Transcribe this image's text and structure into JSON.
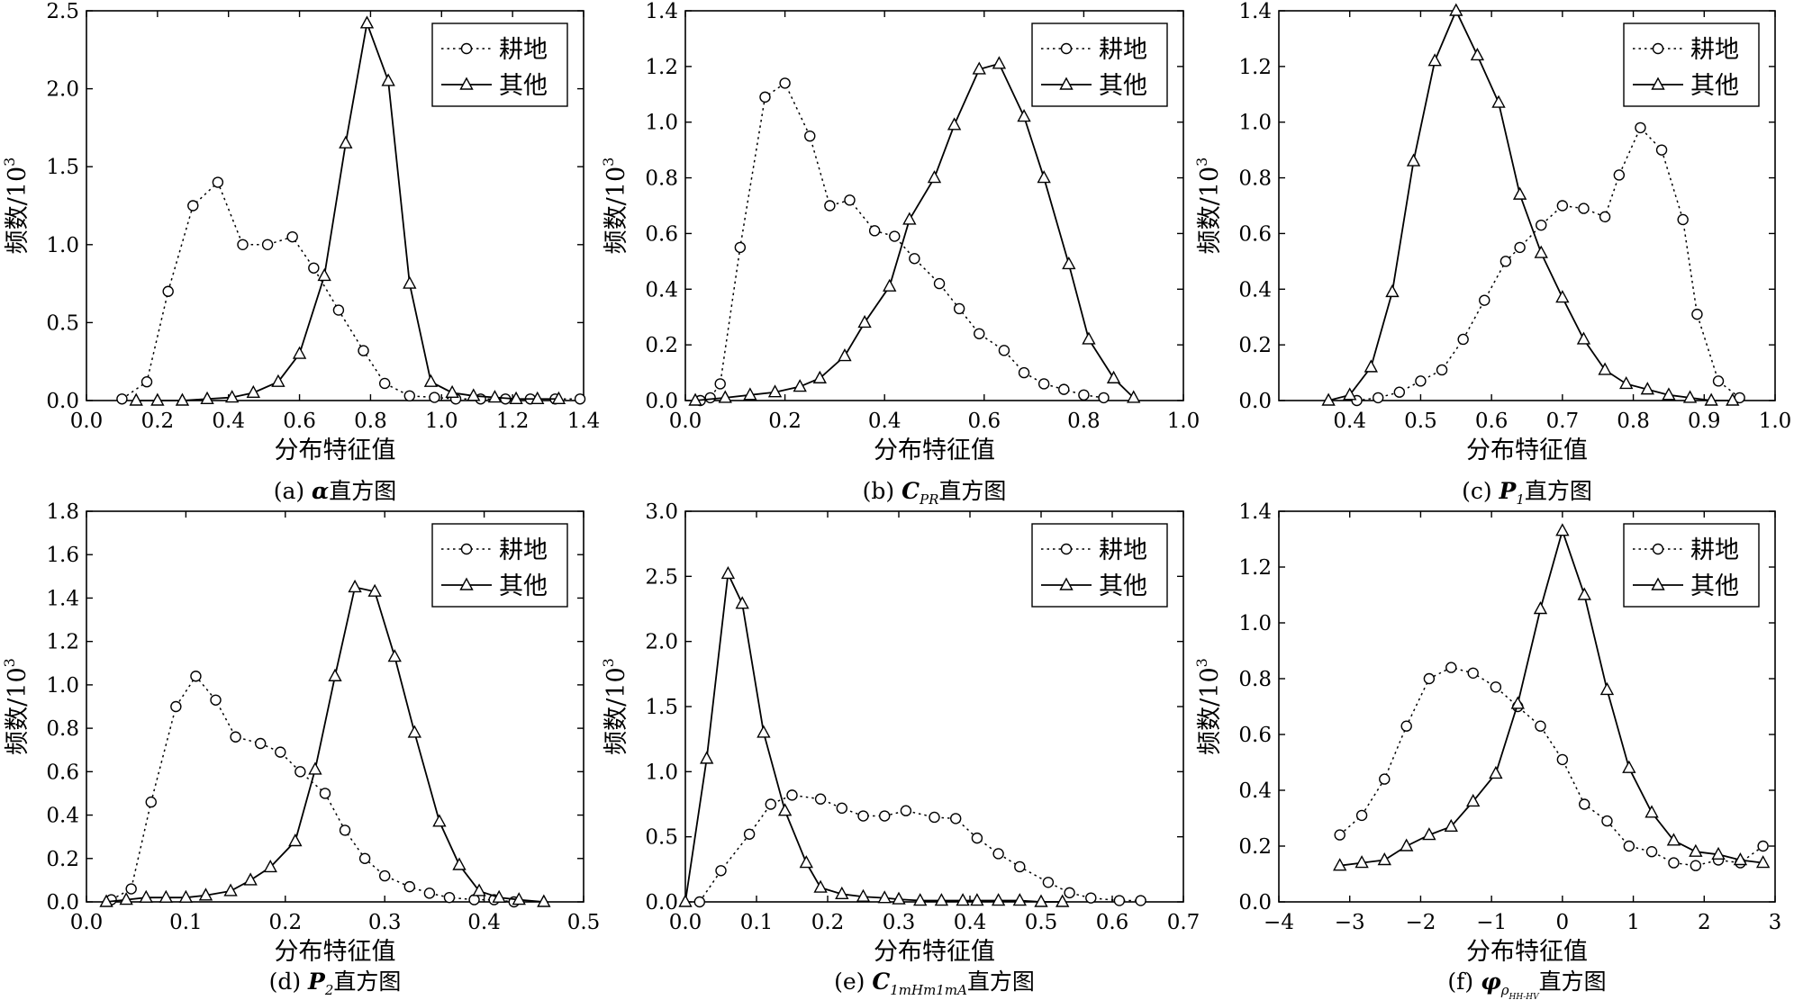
{
  "chart_data": [
    {
      "type": "line",
      "ylabel": "频数/10",
      "ylabel_exp": "3",
      "xlabel": "分布特征值",
      "caption_prefix": "(a) ",
      "caption_symbol": "α",
      "caption_sub": "",
      "caption_suffix": "直方图",
      "xlim": [
        0,
        1.4
      ],
      "ylim": [
        0,
        2.5
      ],
      "xticks": [
        0,
        0.2,
        0.4,
        0.6,
        0.8,
        1.0,
        1.2,
        1.4
      ],
      "xtick_labels": [
        "0.0",
        "0.2",
        "0.4",
        "0.6",
        "0.8",
        "1.0",
        "1.2",
        "1.4"
      ],
      "yticks": [
        0,
        0.5,
        1.0,
        1.5,
        2.0,
        2.5
      ],
      "ytick_labels": [
        "0.0",
        "0.5",
        "1.0",
        "1.5",
        "2.0",
        "2.5"
      ],
      "legend_position": "top-right",
      "series": [
        {
          "name": "耕地",
          "style": "dotted-circle",
          "x": [
            0.1,
            0.17,
            0.23,
            0.3,
            0.37,
            0.44,
            0.51,
            0.58,
            0.64,
            0.71,
            0.78,
            0.84,
            0.91,
            0.98,
            1.04,
            1.11,
            1.18,
            1.25,
            1.32,
            1.39
          ],
          "y": [
            0.01,
            0.12,
            0.7,
            1.25,
            1.4,
            1.0,
            1.0,
            1.05,
            0.85,
            0.58,
            0.32,
            0.11,
            0.03,
            0.02,
            0.01,
            0.01,
            0.01,
            0.01,
            0.01,
            0.01
          ]
        },
        {
          "name": "其他",
          "style": "solid-triangle",
          "x": [
            0.14,
            0.2,
            0.27,
            0.34,
            0.41,
            0.47,
            0.54,
            0.6,
            0.67,
            0.73,
            0.79,
            0.85,
            0.91,
            0.97,
            1.03,
            1.09,
            1.15,
            1.21,
            1.27,
            1.33
          ],
          "y": [
            0.0,
            0.0,
            0.0,
            0.01,
            0.02,
            0.05,
            0.12,
            0.3,
            0.8,
            1.65,
            2.42,
            2.05,
            0.75,
            0.12,
            0.05,
            0.03,
            0.02,
            0.01,
            0.01,
            0.01
          ]
        }
      ]
    },
    {
      "type": "line",
      "ylabel": "频数/10",
      "ylabel_exp": "3",
      "xlabel": "分布特征值",
      "caption_prefix": "(b) ",
      "caption_symbol": "C",
      "caption_sub": "PR",
      "caption_suffix": "直方图",
      "xlim": [
        0,
        1.0
      ],
      "ylim": [
        0,
        1.4
      ],
      "xticks": [
        0,
        0.2,
        0.4,
        0.6,
        0.8,
        1.0
      ],
      "xtick_labels": [
        "0.0",
        "0.2",
        "0.4",
        "0.6",
        "0.8",
        "1.0"
      ],
      "yticks": [
        0,
        0.2,
        0.4,
        0.6,
        0.8,
        1.0,
        1.2,
        1.4
      ],
      "ytick_labels": [
        "0.0",
        "0.2",
        "0.4",
        "0.6",
        "0.8",
        "1.0",
        "1.2",
        "1.4"
      ],
      "legend_position": "top-right",
      "series": [
        {
          "name": "耕地",
          "style": "dotted-circle",
          "x": [
            0.03,
            0.05,
            0.07,
            0.11,
            0.16,
            0.2,
            0.25,
            0.29,
            0.33,
            0.38,
            0.42,
            0.46,
            0.51,
            0.55,
            0.59,
            0.64,
            0.68,
            0.72,
            0.76,
            0.8,
            0.84
          ],
          "y": [
            0.0,
            0.01,
            0.06,
            0.55,
            1.09,
            1.14,
            0.95,
            0.7,
            0.72,
            0.61,
            0.59,
            0.51,
            0.42,
            0.33,
            0.24,
            0.18,
            0.1,
            0.06,
            0.04,
            0.02,
            0.01
          ]
        },
        {
          "name": "其他",
          "style": "solid-triangle",
          "x": [
            0.02,
            0.08,
            0.13,
            0.18,
            0.23,
            0.27,
            0.32,
            0.36,
            0.41,
            0.45,
            0.5,
            0.54,
            0.59,
            0.63,
            0.68,
            0.72,
            0.77,
            0.81,
            0.86,
            0.9
          ],
          "y": [
            0.0,
            0.01,
            0.02,
            0.03,
            0.05,
            0.08,
            0.16,
            0.28,
            0.41,
            0.65,
            0.8,
            0.99,
            1.19,
            1.21,
            1.02,
            0.8,
            0.49,
            0.22,
            0.08,
            0.01
          ]
        }
      ]
    },
    {
      "type": "line",
      "ylabel": "频数/10",
      "ylabel_exp": "3",
      "xlabel": "分布特征值",
      "caption_prefix": "(c) ",
      "caption_symbol": "P",
      "caption_sub": "1",
      "caption_suffix": "直方图",
      "xlim": [
        0.3,
        1.0
      ],
      "ylim": [
        0,
        1.4
      ],
      "xticks": [
        0.4,
        0.5,
        0.6,
        0.7,
        0.8,
        0.9,
        1.0
      ],
      "xtick_labels": [
        "0.4",
        "0.5",
        "0.6",
        "0.7",
        "0.8",
        "0.9",
        "1.0"
      ],
      "yticks": [
        0,
        0.2,
        0.4,
        0.6,
        0.8,
        1.0,
        1.2,
        1.4
      ],
      "ytick_labels": [
        "0.0",
        "0.2",
        "0.4",
        "0.6",
        "0.8",
        "1.0",
        "1.2",
        "1.4"
      ],
      "legend_position": "top-right",
      "series": [
        {
          "name": "耕地",
          "style": "dotted-circle",
          "x": [
            0.41,
            0.44,
            0.47,
            0.5,
            0.53,
            0.56,
            0.59,
            0.62,
            0.64,
            0.67,
            0.7,
            0.73,
            0.76,
            0.78,
            0.81,
            0.84,
            0.87,
            0.89,
            0.92,
            0.95
          ],
          "y": [
            0.0,
            0.01,
            0.03,
            0.07,
            0.11,
            0.22,
            0.36,
            0.5,
            0.55,
            0.63,
            0.7,
            0.69,
            0.66,
            0.81,
            0.98,
            0.9,
            0.65,
            0.31,
            0.07,
            0.01
          ]
        },
        {
          "name": "其他",
          "style": "solid-triangle",
          "x": [
            0.37,
            0.4,
            0.43,
            0.46,
            0.49,
            0.52,
            0.55,
            0.58,
            0.61,
            0.64,
            0.67,
            0.7,
            0.73,
            0.76,
            0.79,
            0.82,
            0.85,
            0.88,
            0.91,
            0.94
          ],
          "y": [
            0.0,
            0.02,
            0.12,
            0.39,
            0.86,
            1.22,
            1.4,
            1.24,
            1.07,
            0.74,
            0.53,
            0.37,
            0.22,
            0.11,
            0.06,
            0.04,
            0.02,
            0.01,
            0.0,
            0.0
          ]
        }
      ]
    },
    {
      "type": "line",
      "ylabel": "频数/10",
      "ylabel_exp": "3",
      "xlabel": "分布特征值",
      "caption_prefix": "(d) ",
      "caption_symbol": "P",
      "caption_sub": "2",
      "caption_suffix": "直方图",
      "xlim": [
        0,
        0.5
      ],
      "ylim": [
        0,
        1.8
      ],
      "xticks": [
        0,
        0.1,
        0.2,
        0.3,
        0.4,
        0.5
      ],
      "xtick_labels": [
        "0.0",
        "0.1",
        "0.2",
        "0.3",
        "0.4",
        "0.5"
      ],
      "yticks": [
        0,
        0.2,
        0.4,
        0.6,
        0.8,
        1.0,
        1.2,
        1.4,
        1.6,
        1.8
      ],
      "ytick_labels": [
        "0.0",
        "0.2",
        "0.4",
        "0.6",
        "0.8",
        "1.0",
        "1.2",
        "1.4",
        "1.6",
        "1.8"
      ],
      "legend_position": "top-right",
      "series": [
        {
          "name": "耕地",
          "style": "dotted-circle",
          "x": [
            0.025,
            0.045,
            0.065,
            0.09,
            0.11,
            0.13,
            0.15,
            0.175,
            0.195,
            0.215,
            0.24,
            0.26,
            0.28,
            0.3,
            0.325,
            0.345,
            0.365,
            0.39,
            0.41,
            0.43
          ],
          "y": [
            0.01,
            0.06,
            0.46,
            0.9,
            1.04,
            0.93,
            0.76,
            0.73,
            0.69,
            0.6,
            0.5,
            0.33,
            0.2,
            0.12,
            0.07,
            0.04,
            0.02,
            0.01,
            0.01,
            0.0
          ]
        },
        {
          "name": "其他",
          "style": "solid-triangle",
          "x": [
            0.02,
            0.04,
            0.06,
            0.08,
            0.1,
            0.12,
            0.145,
            0.165,
            0.185,
            0.21,
            0.23,
            0.25,
            0.27,
            0.29,
            0.31,
            0.33,
            0.355,
            0.375,
            0.395,
            0.415,
            0.435,
            0.46
          ],
          "y": [
            0.0,
            0.01,
            0.02,
            0.02,
            0.02,
            0.03,
            0.05,
            0.1,
            0.16,
            0.28,
            0.61,
            1.04,
            1.45,
            1.43,
            1.13,
            0.78,
            0.37,
            0.17,
            0.05,
            0.02,
            0.01,
            0.0
          ]
        }
      ]
    },
    {
      "type": "line",
      "ylabel": "频数/10",
      "ylabel_exp": "3",
      "xlabel": "分布特征值",
      "caption_prefix": "(e) ",
      "caption_symbol": "C",
      "caption_sub": "1mHm1mA",
      "caption_suffix": "直方图",
      "xlim": [
        0,
        0.7
      ],
      "ylim": [
        0,
        3.0
      ],
      "xticks": [
        0,
        0.1,
        0.2,
        0.3,
        0.4,
        0.5,
        0.6,
        0.7
      ],
      "xtick_labels": [
        "0.0",
        "0.1",
        "0.2",
        "0.3",
        "0.4",
        "0.5",
        "0.6",
        "0.7"
      ],
      "yticks": [
        0,
        0.5,
        1.0,
        1.5,
        2.0,
        2.5,
        3.0
      ],
      "ytick_labels": [
        "0.0",
        "0.5",
        "1.0",
        "1.5",
        "2.0",
        "2.5",
        "3.0"
      ],
      "legend_position": "top-right",
      "series": [
        {
          "name": "耕地",
          "style": "dotted-circle",
          "x": [
            0.02,
            0.05,
            0.09,
            0.12,
            0.15,
            0.19,
            0.22,
            0.25,
            0.28,
            0.31,
            0.35,
            0.38,
            0.41,
            0.44,
            0.47,
            0.51,
            0.54,
            0.57,
            0.61,
            0.64
          ],
          "y": [
            0.0,
            0.24,
            0.52,
            0.75,
            0.82,
            0.79,
            0.72,
            0.66,
            0.66,
            0.7,
            0.65,
            0.64,
            0.49,
            0.37,
            0.27,
            0.15,
            0.07,
            0.03,
            0.01,
            0.01
          ]
        },
        {
          "name": "其他",
          "style": "solid-triangle",
          "x": [
            0.0,
            0.03,
            0.06,
            0.08,
            0.11,
            0.14,
            0.17,
            0.19,
            0.22,
            0.25,
            0.28,
            0.3,
            0.33,
            0.36,
            0.39,
            0.41,
            0.44,
            0.47,
            0.5,
            0.53
          ],
          "y": [
            0.0,
            1.1,
            2.52,
            2.29,
            1.3,
            0.7,
            0.3,
            0.11,
            0.06,
            0.04,
            0.03,
            0.02,
            0.01,
            0.01,
            0.01,
            0.01,
            0.01,
            0.01,
            0.0,
            0.0
          ]
        }
      ]
    },
    {
      "type": "line",
      "ylabel": "频数/10",
      "ylabel_exp": "3",
      "xlabel": "分布特征值",
      "caption_prefix": "(f) ",
      "caption_symbol": "φ",
      "caption_sub": "ρ",
      "caption_subsub": "HH-HV",
      "caption_suffix": "直方图",
      "xlim": [
        -4,
        3
      ],
      "ylim": [
        0,
        1.4
      ],
      "xticks": [
        -4,
        -3,
        -2,
        -1,
        0,
        1,
        2,
        3
      ],
      "xtick_labels": [
        "−4",
        "−3",
        "−2",
        "−1",
        "0",
        "1",
        "2",
        "3"
      ],
      "yticks": [
        0,
        0.2,
        0.4,
        0.6,
        0.8,
        1.0,
        1.2,
        1.4
      ],
      "ytick_labels": [
        "0.0",
        "0.2",
        "0.4",
        "0.6",
        "0.8",
        "1.0",
        "1.2",
        "1.4"
      ],
      "legend_position": "top-right",
      "series": [
        {
          "name": "耕地",
          "style": "dotted-circle",
          "x": [
            -3.14,
            -2.83,
            -2.51,
            -2.2,
            -1.88,
            -1.57,
            -1.26,
            -0.94,
            -0.63,
            -0.31,
            0.0,
            0.31,
            0.63,
            0.94,
            1.26,
            1.57,
            1.88,
            2.2,
            2.51,
            2.83
          ],
          "y": [
            0.24,
            0.31,
            0.44,
            0.63,
            0.8,
            0.84,
            0.82,
            0.77,
            0.7,
            0.63,
            0.51,
            0.35,
            0.29,
            0.2,
            0.18,
            0.14,
            0.13,
            0.15,
            0.14,
            0.2
          ]
        },
        {
          "name": "其他",
          "style": "solid-triangle",
          "x": [
            -3.14,
            -2.83,
            -2.51,
            -2.2,
            -1.88,
            -1.57,
            -1.26,
            -0.94,
            -0.63,
            -0.31,
            0.0,
            0.31,
            0.63,
            0.94,
            1.26,
            1.57,
            1.88,
            2.2,
            2.51,
            2.83
          ],
          "y": [
            0.13,
            0.14,
            0.15,
            0.2,
            0.24,
            0.27,
            0.36,
            0.46,
            0.71,
            1.05,
            1.33,
            1.1,
            0.76,
            0.48,
            0.32,
            0.22,
            0.18,
            0.17,
            0.15,
            0.14
          ]
        }
      ]
    }
  ]
}
